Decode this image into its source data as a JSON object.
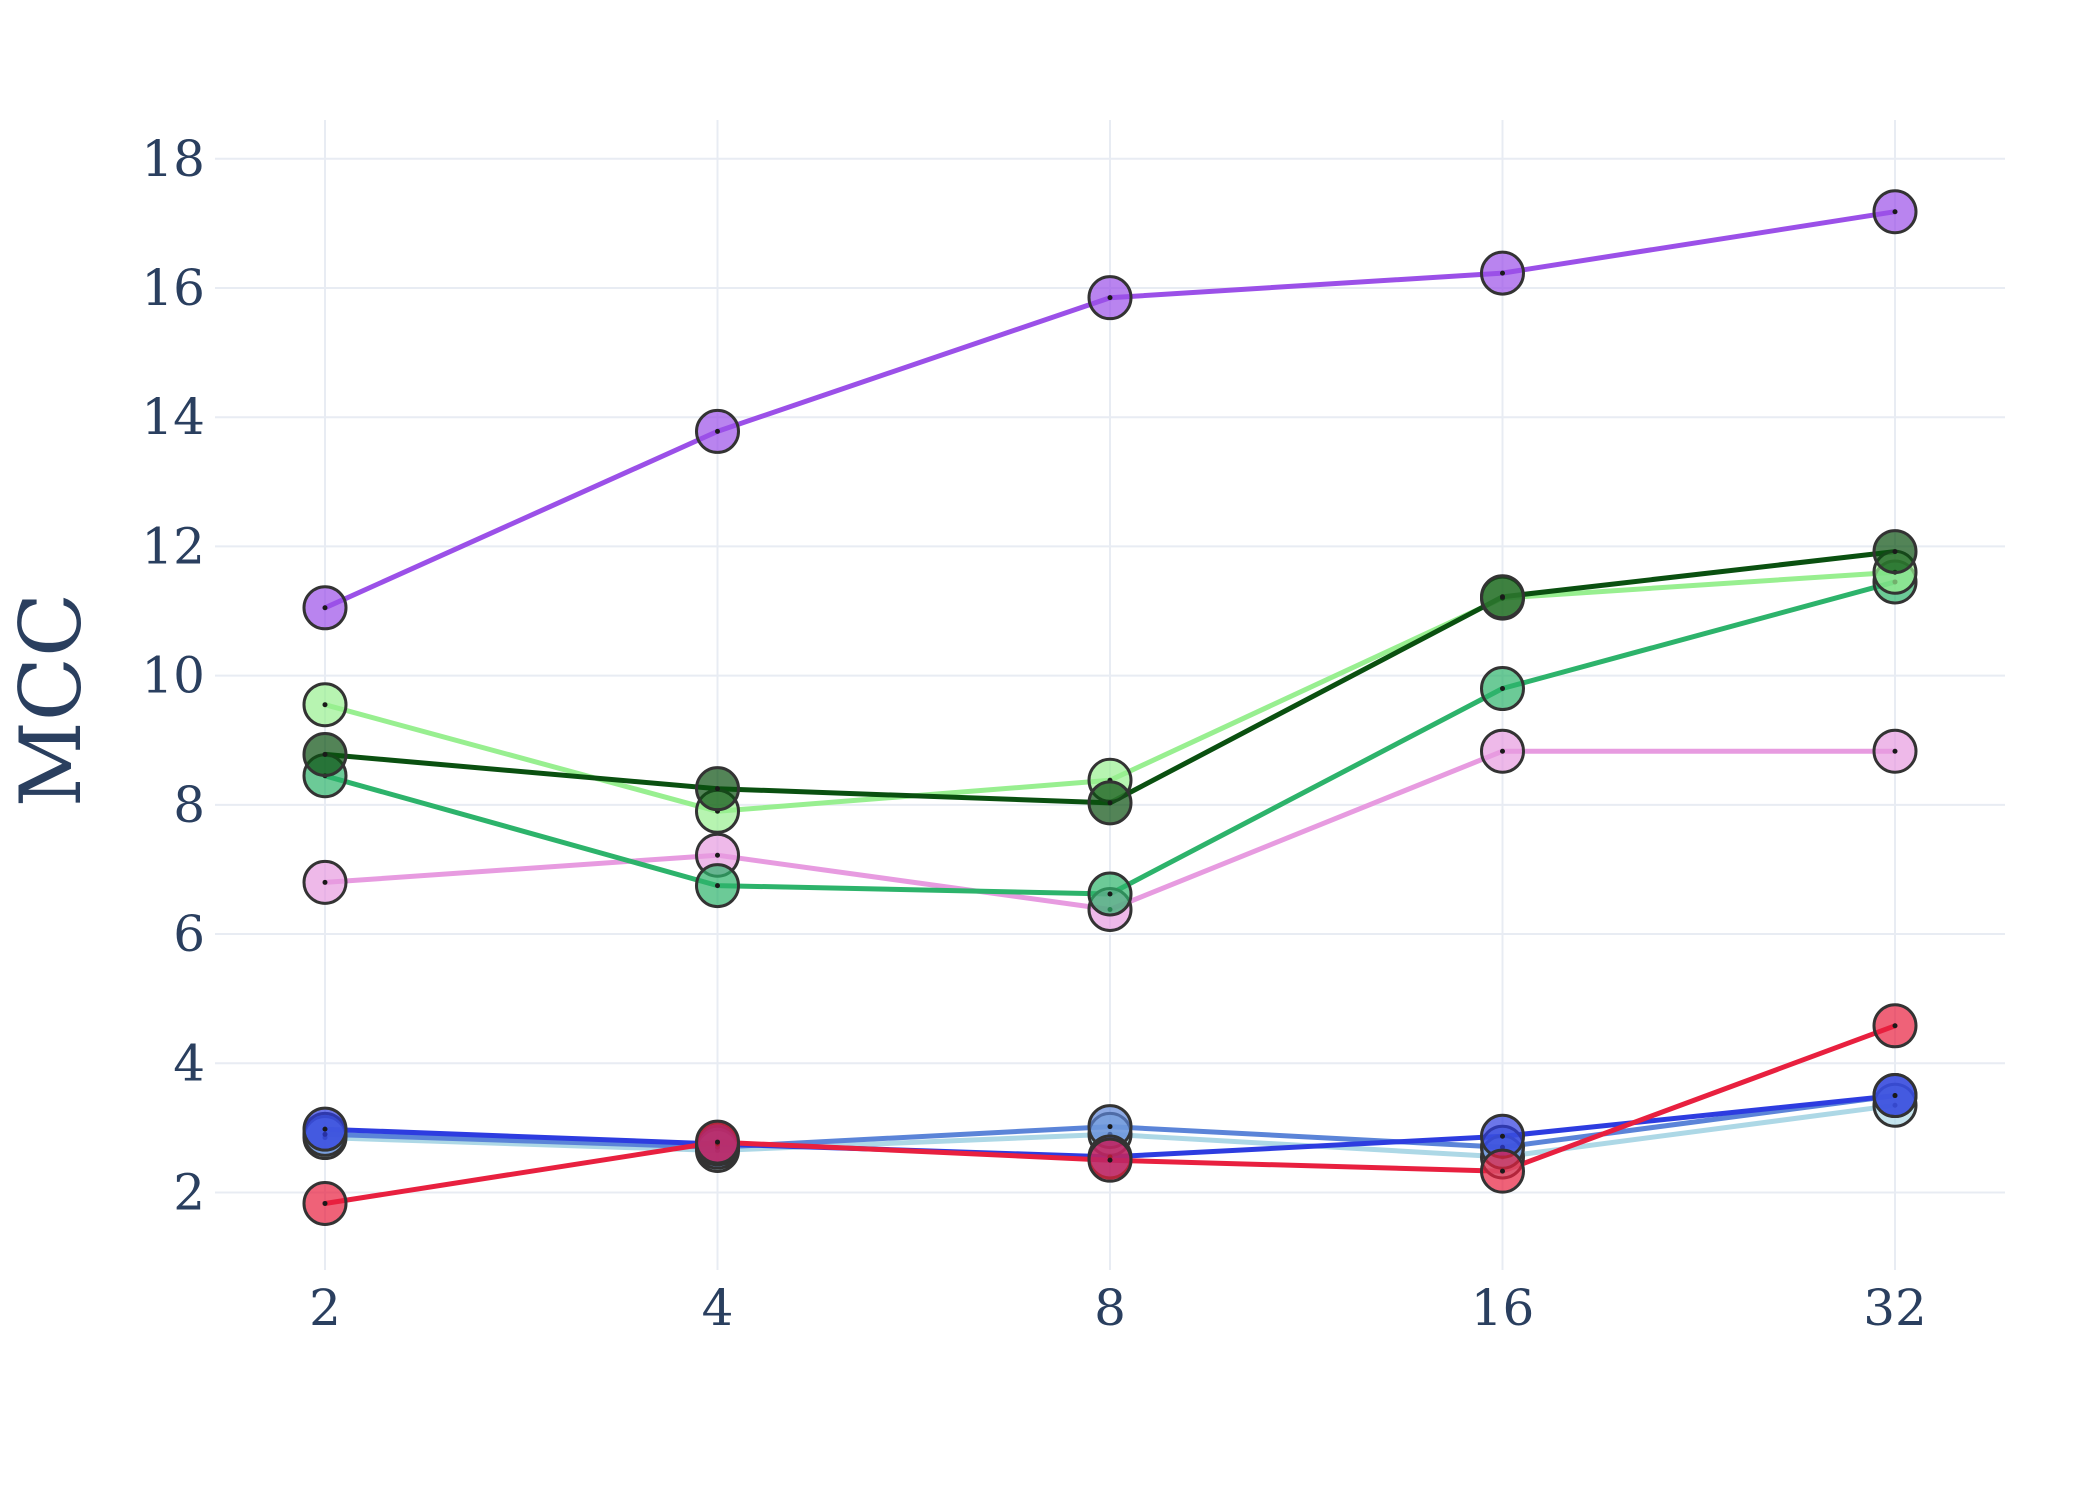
{
  "chart_data": {
    "type": "line",
    "title": "",
    "xlabel": "",
    "ylabel": "MCC",
    "x_scale": "log2",
    "x": [
      2,
      4,
      8,
      16,
      32
    ],
    "x_ticks": [
      "2",
      "4",
      "8",
      "16",
      "32"
    ],
    "y_ticks": [
      2,
      4,
      6,
      8,
      10,
      12,
      14,
      16,
      18
    ],
    "ylim": [
      0.8,
      18.6
    ],
    "grid": true,
    "legend": "none",
    "series": [
      {
        "color": "#9b50e8",
        "values": [
          11.05,
          13.78,
          15.85,
          16.23,
          17.18
        ]
      },
      {
        "color": "#e79be0",
        "values": [
          6.8,
          7.22,
          6.38,
          8.83,
          8.83
        ]
      },
      {
        "color": "#2db36b",
        "values": [
          8.45,
          6.75,
          6.62,
          9.8,
          11.45
        ]
      },
      {
        "color": "#98ef90",
        "values": [
          9.55,
          7.9,
          8.38,
          11.2,
          11.6
        ]
      },
      {
        "color": "#0a5010",
        "values": [
          8.78,
          8.25,
          8.03,
          11.22,
          11.92
        ]
      },
      {
        "color": "#add8e6",
        "values": [
          2.85,
          2.65,
          2.9,
          2.55,
          3.35
        ]
      },
      {
        "color": "#5b84d8",
        "values": [
          2.9,
          2.7,
          3.02,
          2.7,
          3.5
        ]
      },
      {
        "color": "#2d3ce0",
        "values": [
          2.98,
          2.75,
          2.55,
          2.87,
          3.5
        ]
      },
      {
        "color": "#e8203f",
        "values": [
          1.83,
          2.78,
          2.5,
          2.33,
          4.58
        ]
      }
    ]
  }
}
